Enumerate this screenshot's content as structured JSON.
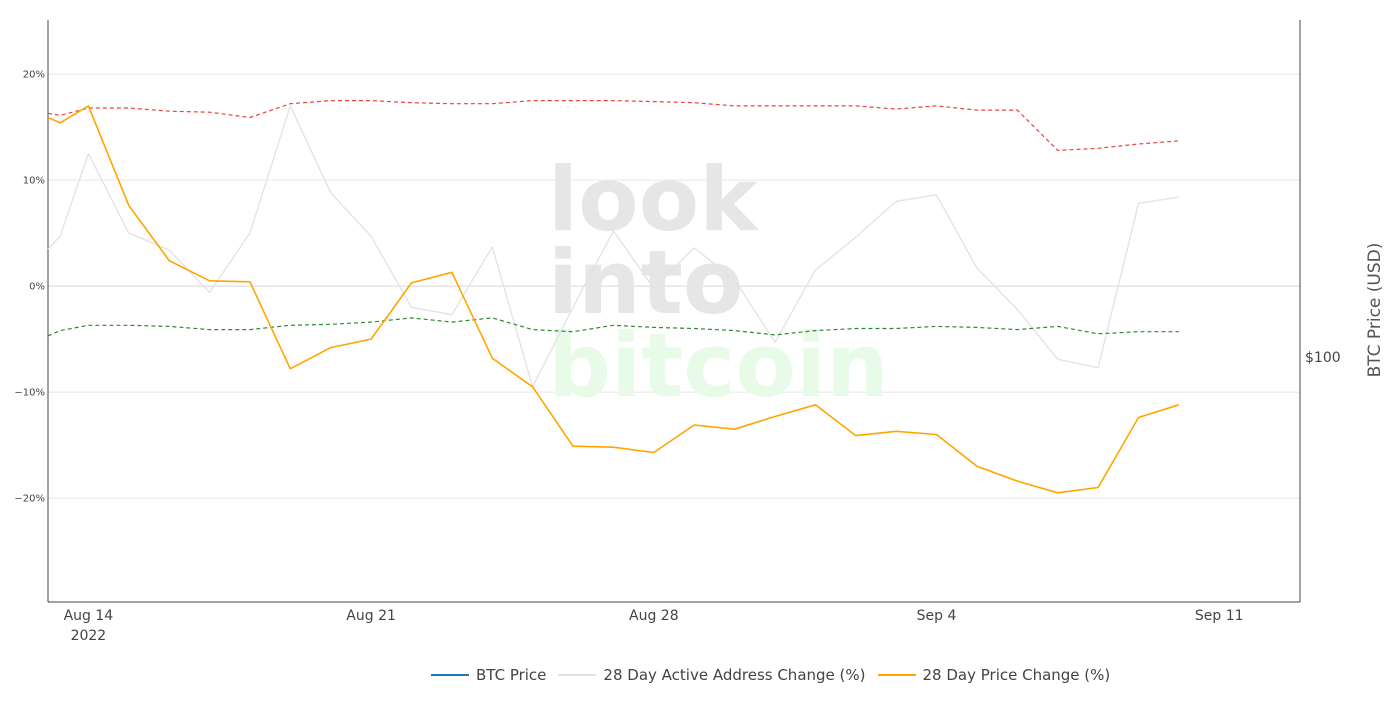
{
  "chart_data": {
    "type": "line",
    "title": "",
    "xlabel": "",
    "ylabel": "",
    "y2label": "BTC Price (USD)",
    "y2_ticks": [
      "$100"
    ],
    "x_tick_labels": [
      {
        "date": "2022-08-14",
        "label": "Aug 14",
        "sublabel": "2022"
      },
      {
        "date": "2022-08-21",
        "label": "Aug 21",
        "sublabel": ""
      },
      {
        "date": "2022-08-28",
        "label": "Aug 28",
        "sublabel": ""
      },
      {
        "date": "2022-09-04",
        "label": "Sep 4",
        "sublabel": ""
      },
      {
        "date": "2022-09-11",
        "label": "Sep 11",
        "sublabel": ""
      }
    ],
    "y_ticks": [
      {
        "value": 20,
        "label": "20%"
      },
      {
        "value": 10,
        "label": "10%"
      },
      {
        "value": 0,
        "label": "0%"
      },
      {
        "value": -10,
        "label": "−10%"
      },
      {
        "value": -20,
        "label": "−20%"
      }
    ],
    "xlim": [
      "2022-08-13",
      "2022-09-13"
    ],
    "ylim": [
      -29.8,
      25.1
    ],
    "grid": true,
    "legend_position": "bottom",
    "watermark": [
      "look",
      "into",
      "bitcoin"
    ],
    "series": [
      {
        "name": "BTC Price",
        "color": "#1f77b4",
        "style": "solid",
        "dates": [],
        "values": []
      },
      {
        "name": "28 Day Active Address Change (%)",
        "color": "#e2e2e2",
        "style": "solid",
        "dates": [
          "2022-08-13",
          "2022-08-13.3",
          "2022-08-14",
          "2022-08-15",
          "2022-08-16",
          "2022-08-17",
          "2022-08-18",
          "2022-08-19",
          "2022-08-20",
          "2022-08-21",
          "2022-08-22",
          "2022-08-23",
          "2022-08-24",
          "2022-08-25",
          "2022-08-26",
          "2022-08-27",
          "2022-08-28",
          "2022-08-29",
          "2022-08-30",
          "2022-08-31",
          "2022-09-01",
          "2022-09-02",
          "2022-09-03",
          "2022-09-04",
          "2022-09-05",
          "2022-09-06",
          "2022-09-07",
          "2022-09-08",
          "2022-09-09",
          "2022-09-10"
        ],
        "values": [
          3.5,
          4.7,
          12.5,
          5.0,
          3.4,
          -0.6,
          5.0,
          17.0,
          8.8,
          4.7,
          -2.0,
          -2.7,
          3.7,
          -9.5,
          -2.0,
          5.2,
          -0.2,
          3.6,
          0.6,
          -5.3,
          1.5,
          4.6,
          8.0,
          8.6,
          1.7,
          -2.2,
          -6.9,
          -7.7,
          7.8,
          8.4
        ]
      },
      {
        "name": "28 Day Price Change (%)",
        "color": "#ffa500",
        "style": "solid",
        "dates": [
          "2022-08-13",
          "2022-08-13.3",
          "2022-08-14",
          "2022-08-15",
          "2022-08-16",
          "2022-08-17",
          "2022-08-18",
          "2022-08-19",
          "2022-08-20",
          "2022-08-21",
          "2022-08-22",
          "2022-08-23",
          "2022-08-24",
          "2022-08-25",
          "2022-08-26",
          "2022-08-27",
          "2022-08-28",
          "2022-08-29",
          "2022-08-30",
          "2022-08-31",
          "2022-09-01",
          "2022-09-02",
          "2022-09-03",
          "2022-09-04",
          "2022-09-05",
          "2022-09-06",
          "2022-09-07",
          "2022-09-08",
          "2022-09-09",
          "2022-09-10"
        ],
        "values": [
          15.9,
          15.4,
          17.0,
          7.6,
          2.4,
          0.5,
          0.4,
          -7.8,
          -5.8,
          -5.0,
          0.3,
          1.3,
          -6.8,
          -9.5,
          -15.1,
          -15.2,
          -15.7,
          -13.1,
          -13.5,
          -12.3,
          -11.2,
          -14.1,
          -13.7,
          -14.0,
          -17.0,
          -18.4,
          -19.5,
          -19.0,
          -12.4,
          -11.2
        ]
      },
      {
        "name": "",
        "color": "#e8463a",
        "style": "dashed",
        "dates": [
          "2022-08-13",
          "2022-08-13.3",
          "2022-08-14",
          "2022-08-15",
          "2022-08-16",
          "2022-08-17",
          "2022-08-18",
          "2022-08-19",
          "2022-08-20",
          "2022-08-21",
          "2022-08-22",
          "2022-08-23",
          "2022-08-24",
          "2022-08-25",
          "2022-08-26",
          "2022-08-27",
          "2022-08-28",
          "2022-08-29",
          "2022-08-30",
          "2022-08-31",
          "2022-09-01",
          "2022-09-02",
          "2022-09-03",
          "2022-09-04",
          "2022-09-05",
          "2022-09-06",
          "2022-09-07",
          "2022-09-08",
          "2022-09-09",
          "2022-09-10"
        ],
        "values": [
          16.3,
          16.1,
          16.8,
          16.8,
          16.5,
          16.4,
          15.9,
          17.2,
          17.5,
          17.5,
          17.3,
          17.2,
          17.2,
          17.5,
          17.5,
          17.5,
          17.4,
          17.3,
          17.0,
          17.0,
          17.0,
          17.0,
          16.7,
          17.0,
          16.6,
          16.6,
          12.8,
          13.0,
          13.4,
          13.7
        ]
      },
      {
        "name": "",
        "color": "#2e8b2e",
        "style": "dashed",
        "dates": [
          "2022-08-13",
          "2022-08-13.3",
          "2022-08-14",
          "2022-08-15",
          "2022-08-16",
          "2022-08-17",
          "2022-08-18",
          "2022-08-19",
          "2022-08-20",
          "2022-08-21",
          "2022-08-22",
          "2022-08-23",
          "2022-08-24",
          "2022-08-25",
          "2022-08-26",
          "2022-08-27",
          "2022-08-28",
          "2022-08-29",
          "2022-08-30",
          "2022-08-31",
          "2022-09-01",
          "2022-09-02",
          "2022-09-03",
          "2022-09-04",
          "2022-09-05",
          "2022-09-06",
          "2022-09-07",
          "2022-09-08",
          "2022-09-09",
          "2022-09-10"
        ],
        "values": [
          -4.7,
          -4.2,
          -3.7,
          -3.7,
          -3.8,
          -4.1,
          -4.1,
          -3.7,
          -3.6,
          -3.4,
          -3.0,
          -3.4,
          -3.0,
          -4.1,
          -4.3,
          -3.7,
          -3.9,
          -4.0,
          -4.2,
          -4.6,
          -4.2,
          -4.0,
          -4.0,
          -3.8,
          -3.9,
          -4.1,
          -3.8,
          -4.5,
          -4.3,
          -4.3
        ]
      }
    ]
  }
}
